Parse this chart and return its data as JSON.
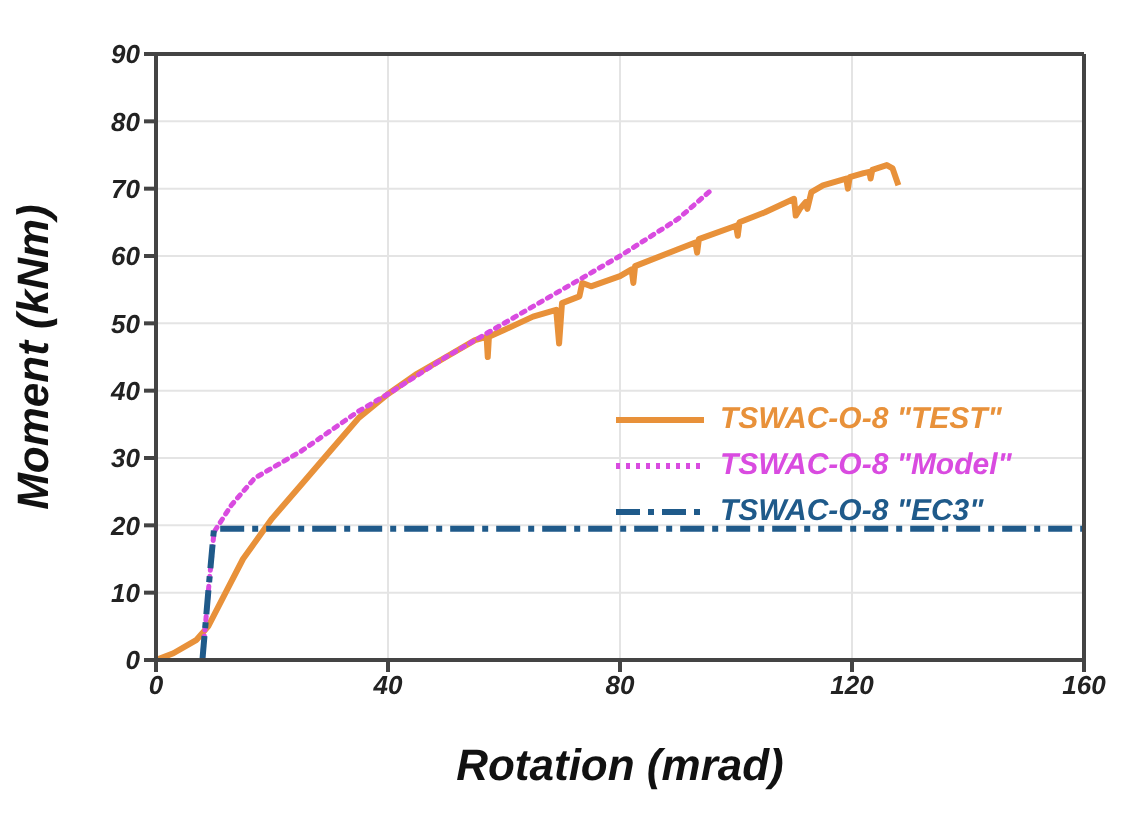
{
  "chart_data": {
    "type": "line",
    "xlabel": "Rotation (mrad)",
    "ylabel": "Moment  (kNm)",
    "xlim": [
      0,
      160
    ],
    "xticks": [
      0,
      40,
      80,
      120,
      160
    ],
    "ylim": [
      0,
      90
    ],
    "yticks": [
      0,
      10,
      20,
      30,
      40,
      50,
      60,
      70,
      80,
      90
    ],
    "grid": true,
    "legend": "right",
    "marker": "none",
    "series": [
      {
        "name": "TSWAC-O-8 \"TEST\"",
        "color": "#e8913a",
        "line_style": "solid",
        "x": [
          0,
          3,
          7,
          9,
          12,
          15,
          20,
          25,
          30,
          35,
          40,
          45,
          50,
          55,
          57,
          57.2,
          57.4,
          60,
          65,
          69,
          69.5,
          70,
          73,
          73.5,
          75,
          80,
          82,
          82.3,
          82.6,
          90,
          93,
          93.3,
          93.6,
          100,
          100.3,
          100.6,
          105,
          110,
          110.3,
          111,
          112,
          112.3,
          113,
          115,
          119,
          119.3,
          119.6,
          122,
          123,
          123.2,
          123.5,
          126,
          127,
          128
        ],
        "values": [
          0,
          1,
          3,
          5,
          10,
          15,
          21,
          26,
          31,
          36,
          39.5,
          42.5,
          45,
          47.5,
          48,
          45,
          48,
          49,
          51,
          52,
          47,
          53,
          54,
          56,
          55.5,
          57,
          58,
          56,
          58.5,
          61,
          62,
          60.5,
          62.5,
          64.5,
          63,
          65,
          66.5,
          68.5,
          66,
          67,
          68,
          67,
          69.5,
          70.5,
          71.5,
          70,
          71.7,
          72.3,
          72.5,
          71.5,
          72.8,
          73.5,
          73,
          70.5
        ]
      },
      {
        "name": "TSWAC-O-8 \"Model\"",
        "color": "#d94be0",
        "line_style": "dotted",
        "x": [
          8,
          9,
          10,
          13,
          17,
          20,
          25,
          30,
          35,
          40,
          50,
          60,
          70,
          80,
          90,
          96
        ],
        "values": [
          0,
          10,
          19,
          23,
          27,
          28.5,
          31,
          34,
          37,
          39.5,
          45,
          50,
          55,
          60,
          65.5,
          70
        ]
      },
      {
        "name": "TSWAC-O-8 \"EC3\"",
        "color": "#1f5a8a",
        "line_style": "dashdot",
        "x": [
          8,
          9,
          10,
          160
        ],
        "values": [
          0,
          10,
          19.5,
          19.5
        ]
      }
    ]
  }
}
